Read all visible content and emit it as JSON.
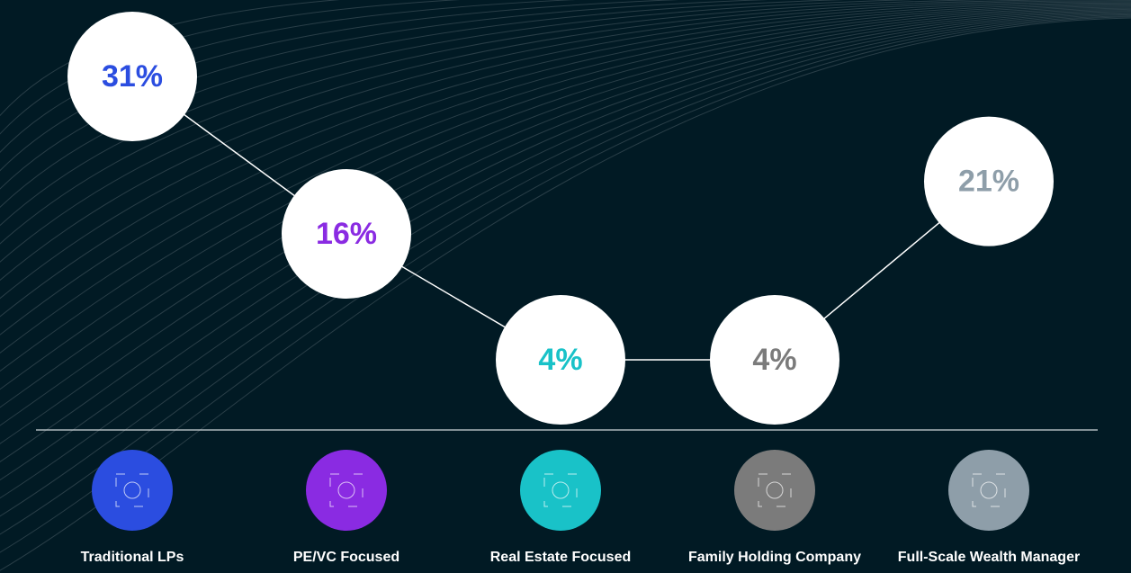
{
  "chart_data": {
    "type": "bubble-line",
    "categories": [
      "Traditional LPs",
      "PE/VC Focused",
      "Real Estate Focused",
      "Family Holding Company",
      "Full-Scale Wealth Manager"
    ],
    "values": [
      31,
      16,
      4,
      4,
      21
    ],
    "value_labels": [
      "31%",
      "16%",
      "4%",
      "4%",
      "21%"
    ],
    "colors": [
      "#2b4de0",
      "#8a2be2",
      "#19c2c8",
      "#7b7b7b",
      "#8e9ea9"
    ]
  }
}
